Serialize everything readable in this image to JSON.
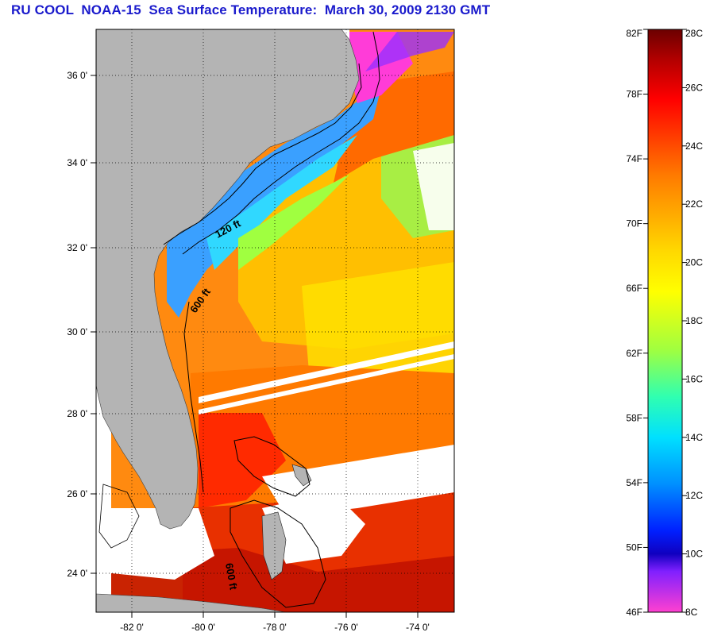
{
  "title": "RU COOL  NOAA-15  Sea Surface Temperature:  March 30, 2009 2130 GMT",
  "map": {
    "lat_labels": [
      "36 0'",
      "34 0'",
      "32 0'",
      "30 0'",
      "28 0'",
      "26 0'",
      "24 0'"
    ],
    "lon_labels": [
      "-82 0'",
      "-80 0'",
      "-78 0'",
      "-76 0'",
      "-74 0'"
    ],
    "contour_labels": [
      "120 ft",
      "600 ft",
      "600 ft"
    ],
    "colors": {
      "land": "#b4b4b4",
      "cloud": "#ffffff",
      "gulf_stream": "#ff8a10",
      "shelf_cold": "#3aa0ff",
      "near_shore_very_cold": "#ff3cd8",
      "offshore_green": "#a8ee44"
    }
  },
  "colorbar": {
    "fahrenheit_labels": [
      "82F",
      "78F",
      "74F",
      "70F",
      "66F",
      "62F",
      "58F",
      "54F",
      "50F",
      "46F"
    ],
    "celsius_labels": [
      "28C",
      "26C",
      "24C",
      "22C",
      "20C",
      "18C",
      "16C",
      "14C",
      "12C",
      "10C",
      "8C"
    ],
    "range_c": [
      8,
      28
    ],
    "range_f": [
      46,
      82
    ]
  }
}
